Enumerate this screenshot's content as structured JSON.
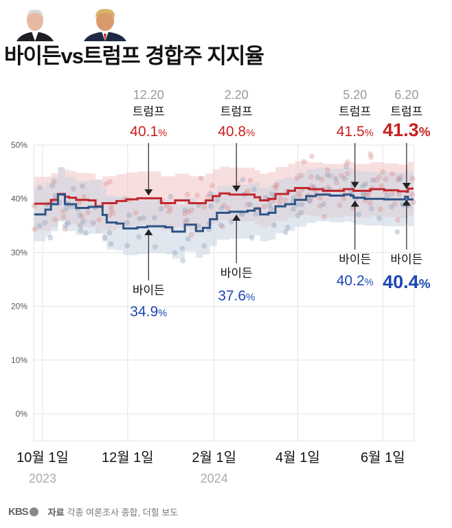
{
  "header": {
    "title": "바이든vs트럼프 경합주 지지율",
    "photos": [
      {
        "name": "바이든"
      },
      {
        "name": "트럼프"
      }
    ]
  },
  "footer": {
    "logo": "KBS",
    "source_label": "자료",
    "source_text": "각종 여론조사 종합, 더힐 보도"
  },
  "chart_data": {
    "type": "line",
    "title": "바이든vs트럼프 경합주 지지율",
    "x_origin": "2023-10-01",
    "x_unit": "days since 2023-10-01",
    "xlim": [
      -6,
      267
    ],
    "ylim": [
      -5,
      50
    ],
    "y_ticks": [
      0,
      10,
      20,
      30,
      40,
      50
    ],
    "y_tick_labels": [
      "0%",
      "10%",
      "20%",
      "30%",
      "40%",
      "50%"
    ],
    "x_ticks": [
      {
        "day": 0,
        "label": "10월 1일",
        "year": "2023"
      },
      {
        "day": 61,
        "label": "12월 1일",
        "year": ""
      },
      {
        "day": 123,
        "label": "2월 1일",
        "year": "2024"
      },
      {
        "day": 183,
        "label": "4월 1일",
        "year": ""
      },
      {
        "day": 244,
        "label": "6월 1일",
        "year": ""
      }
    ],
    "grid": true,
    "band_halfwidth": 5,
    "series": [
      {
        "name": "트럼프",
        "color": "#c0272d",
        "band_color": "#f2c4c4",
        "points": [
          [
            -6,
            39.1
          ],
          [
            1,
            39.1
          ],
          [
            6,
            39.8
          ],
          [
            11,
            40.9
          ],
          [
            16,
            40.4
          ],
          [
            19,
            40.2
          ],
          [
            24,
            39.8
          ],
          [
            33,
            39.7
          ],
          [
            36,
            39.7
          ],
          [
            38,
            38.6
          ],
          [
            43,
            39.2
          ],
          [
            53,
            39.6
          ],
          [
            60,
            39.9
          ],
          [
            68,
            40.1
          ],
          [
            84,
            40.1
          ],
          [
            85,
            39.2
          ],
          [
            93,
            39.2
          ],
          [
            95,
            39.7
          ],
          [
            100,
            39.7
          ],
          [
            105,
            39.2
          ],
          [
            112,
            39.2
          ],
          [
            117,
            39.7
          ],
          [
            122,
            40.5
          ],
          [
            127,
            41.0
          ],
          [
            134,
            40.8
          ],
          [
            142,
            40.8
          ],
          [
            147,
            40.8
          ],
          [
            152,
            40.3
          ],
          [
            156,
            39.7
          ],
          [
            162,
            40.0
          ],
          [
            167,
            40.9
          ],
          [
            176,
            41.5
          ],
          [
            181,
            42.0
          ],
          [
            191,
            41.8
          ],
          [
            201,
            41.5
          ],
          [
            216,
            41.8
          ],
          [
            223,
            41.5
          ],
          [
            235,
            41.8
          ],
          [
            245,
            41.6
          ],
          [
            255,
            41.4
          ],
          [
            261,
            41.3
          ],
          [
            262,
            41.9
          ],
          [
            266,
            41.9
          ]
        ]
      },
      {
        "name": "바이든",
        "color": "#2e5286",
        "band_color": "#c9d3e0",
        "points": [
          [
            -6,
            37.1
          ],
          [
            1,
            37.1
          ],
          [
            2,
            38.0
          ],
          [
            6,
            39.0
          ],
          [
            11,
            40.8
          ],
          [
            16,
            39.0
          ],
          [
            24,
            38.3
          ],
          [
            33,
            38.5
          ],
          [
            38,
            38.5
          ],
          [
            43,
            37.0
          ],
          [
            46,
            35.6
          ],
          [
            53,
            35.4
          ],
          [
            58,
            34.5
          ],
          [
            68,
            34.7
          ],
          [
            75,
            34.9
          ],
          [
            88,
            34.7
          ],
          [
            93,
            33.9
          ],
          [
            100,
            33.9
          ],
          [
            102,
            35.2
          ],
          [
            110,
            34.0
          ],
          [
            115,
            34.6
          ],
          [
            120,
            36.2
          ],
          [
            125,
            37.4
          ],
          [
            134,
            37.6
          ],
          [
            139,
            37.6
          ],
          [
            147,
            37.8
          ],
          [
            152,
            38.2
          ],
          [
            156,
            37.1
          ],
          [
            162,
            37.4
          ],
          [
            167,
            38.6
          ],
          [
            174,
            39.0
          ],
          [
            181,
            39.8
          ],
          [
            189,
            40.5
          ],
          [
            196,
            40.8
          ],
          [
            206,
            40.6
          ],
          [
            216,
            40.8
          ],
          [
            221,
            40.6
          ],
          [
            223,
            40.2
          ],
          [
            231,
            40.0
          ],
          [
            245,
            39.9
          ],
          [
            260,
            40.4
          ],
          [
            262,
            39.9
          ],
          [
            266,
            39.9
          ]
        ]
      }
    ],
    "annotations": [
      {
        "series": "트럼프",
        "date": "12.20",
        "label": "트럼프",
        "value": "40.1",
        "day": 76,
        "emphasis": false
      },
      {
        "series": "트럼프",
        "date": "2.20",
        "label": "트럼프",
        "value": "40.8",
        "day": 139,
        "emphasis": false
      },
      {
        "series": "트럼프",
        "date": "5.20",
        "label": "트럼프",
        "value": "41.5",
        "day": 224,
        "emphasis": false
      },
      {
        "series": "트럼프",
        "date": "6.20",
        "label": "트럼프",
        "value": "41.3",
        "day": 261,
        "emphasis": true
      },
      {
        "series": "바이든",
        "label": "바이든",
        "value": "34.9",
        "day": 76,
        "emphasis": false
      },
      {
        "series": "바이든",
        "label": "바이든",
        "value": "37.6",
        "day": 139,
        "emphasis": false
      },
      {
        "series": "바이든",
        "label": "바이든",
        "value": "40.2",
        "day": 224,
        "emphasis": false
      },
      {
        "series": "바이든",
        "label": "바이든",
        "value": "40.4",
        "day": 261,
        "emphasis": true
      }
    ],
    "percent_sign": "%",
    "colors": {
      "trump_text": "#c8201e",
      "biden_text": "#1c46b5",
      "date_text": "#9a9a9a"
    }
  }
}
